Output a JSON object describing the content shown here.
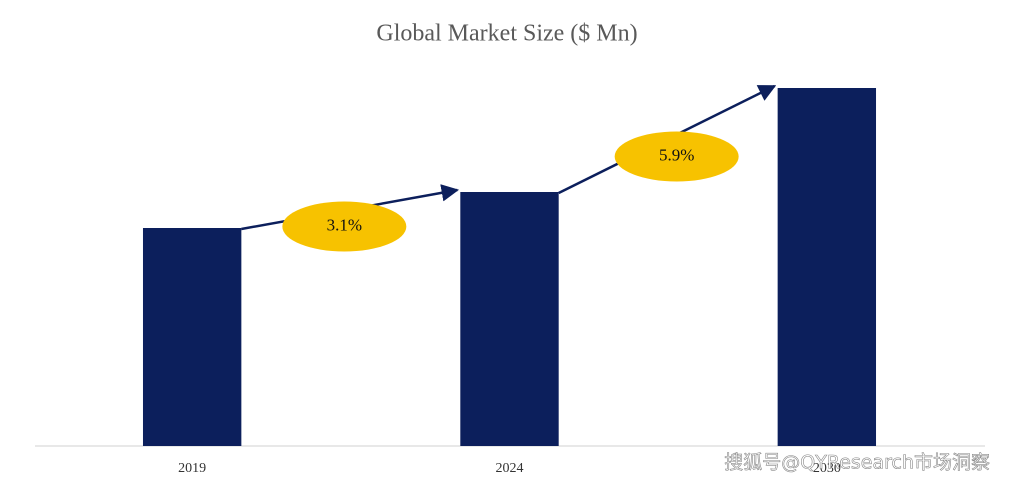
{
  "chart_data": {
    "type": "bar",
    "title": "Global Market Size ($ Mn)",
    "categories": [
      "2019",
      "2024",
      "2030"
    ],
    "values": [
      218,
      254,
      358
    ],
    "color": "#0c1f5c",
    "ylim": [
      0,
      390
    ],
    "growth_labels": [
      "3.1%",
      "5.9%"
    ],
    "growth_color": "#f7c200",
    "arrow_color": "#0c1f5c"
  },
  "watermark": "搜狐号@QYResearch市场洞察"
}
